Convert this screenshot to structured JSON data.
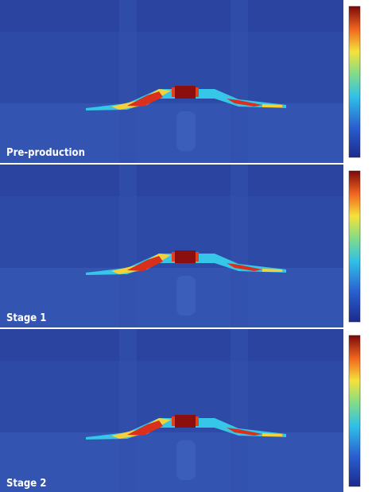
{
  "panels": [
    {
      "label": "Pre-production"
    },
    {
      "label": "Stage 1"
    },
    {
      "label": "Stage 2"
    }
  ]
}
